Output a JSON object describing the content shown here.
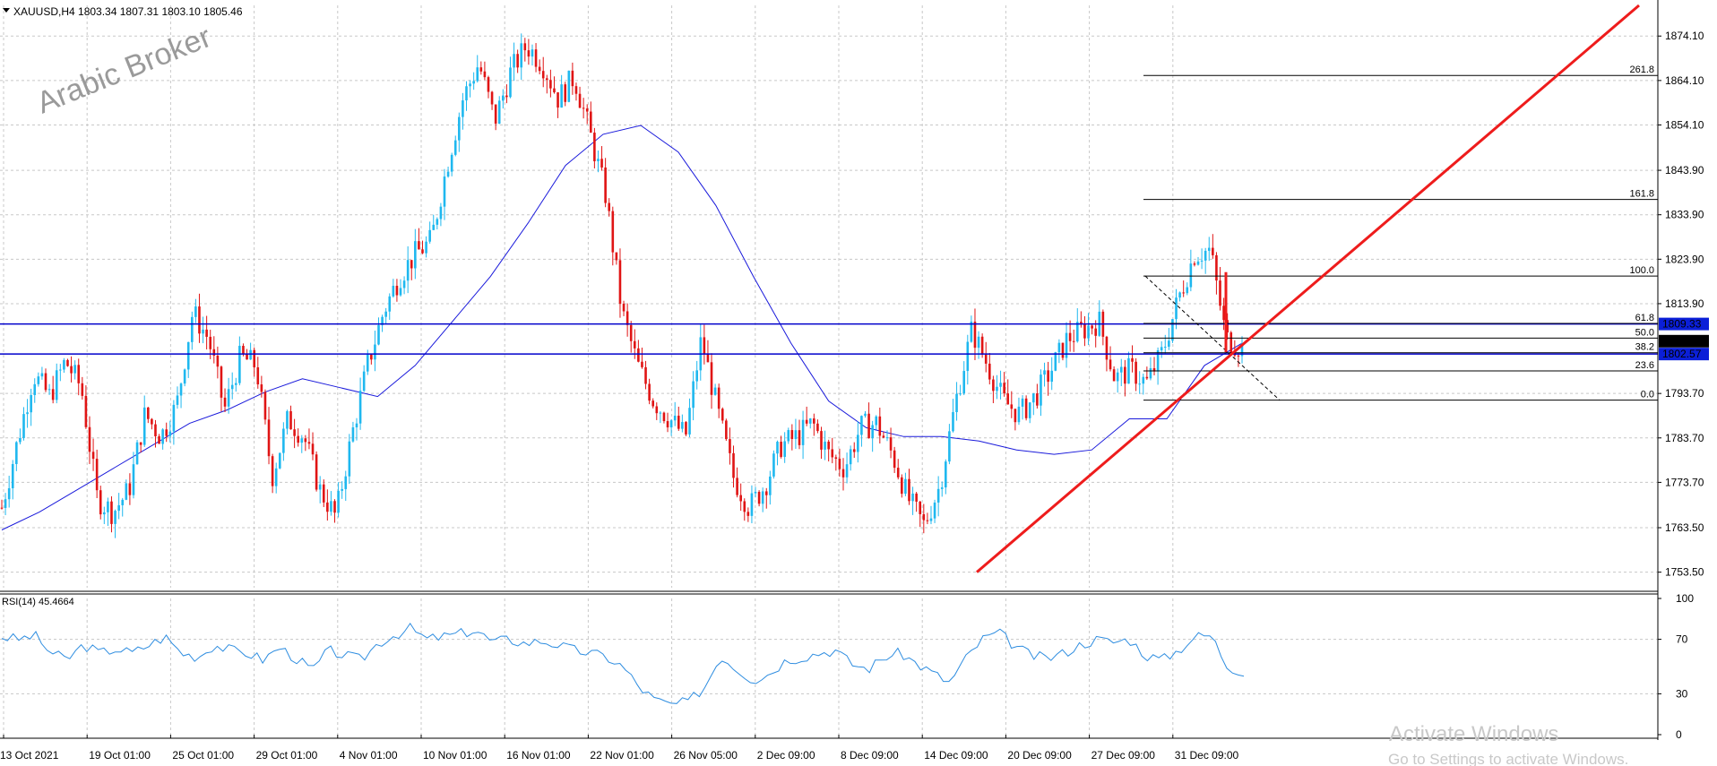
{
  "header": {
    "symbol_line": "XAUUSD,H4  1803.34 1807.31 1803.10 1805.46"
  },
  "watermark": "Arabic Broker",
  "activate_windows": {
    "title": "Activate Windows",
    "subtitle": "Go to Settings to activate Windows."
  },
  "colors": {
    "bull": "#1fb8ef",
    "bear": "#e01414",
    "ma": "#1a1adb",
    "hline": "#0000cc",
    "trend": "#ee1c1c",
    "fib": "#000000",
    "rsi": "#2e8de0",
    "grid": "#c8c8c8",
    "price_box": "#000000",
    "hline_box": "#0b1fd8"
  },
  "chart_data": [
    {
      "type": "candlestick",
      "symbol": "XAUUSD",
      "timeframe": "H4",
      "ohlc_current": {
        "open": 1803.34,
        "high": 1807.31,
        "low": 1803.1,
        "close": 1805.46
      },
      "ylim": [
        1750.0,
        1881.0
      ],
      "y_ticks": [
        1874.1,
        1864.1,
        1854.1,
        1843.9,
        1833.9,
        1823.9,
        1813.9,
        1793.7,
        1783.7,
        1773.7,
        1763.5,
        1753.5
      ],
      "x_labels": [
        "13 Oct 2021",
        "19 Oct 01:00",
        "25 Oct 01:00",
        "29 Oct 01:00",
        "4 Nov 01:00",
        "10 Nov 01:00",
        "16 Nov 01:00",
        "22 Nov 01:00",
        "26 Nov 05:00",
        "2 Dec 09:00",
        "8 Dec 09:00",
        "14 Dec 09:00",
        "20 Dec 09:00",
        "27 Dec 09:00",
        "31 Dec 09:00"
      ],
      "grid": true,
      "close_path": [
        1768,
        1783,
        1798,
        1793,
        1801,
        1795,
        1770,
        1767,
        1772,
        1789,
        1784,
        1791,
        1812,
        1806,
        1790,
        1802,
        1800,
        1775,
        1788,
        1784,
        1772,
        1766,
        1784,
        1800,
        1812,
        1820,
        1825,
        1828,
        1845,
        1860,
        1868,
        1855,
        1866,
        1872,
        1868,
        1860,
        1865,
        1852,
        1838,
        1812,
        1800,
        1792,
        1788,
        1784,
        1806,
        1790,
        1775,
        1768,
        1773,
        1782,
        1784,
        1787,
        1780,
        1777,
        1786,
        1787,
        1780,
        1770,
        1764,
        1773,
        1792,
        1808,
        1800,
        1792,
        1789,
        1793,
        1799,
        1806,
        1808,
        1810,
        1797,
        1799,
        1796,
        1803,
        1815,
        1825,
        1826,
        1806,
        1804
      ],
      "ma_path": [
        1763,
        1767,
        1772,
        1777,
        1782,
        1787,
        1790,
        1794,
        1797,
        1795,
        1793,
        1800,
        1810,
        1820,
        1832,
        1845,
        1852,
        1854,
        1848,
        1836,
        1820,
        1805,
        1792,
        1786,
        1784,
        1784,
        1783,
        1781,
        1780,
        1781,
        1788,
        1788,
        1800,
        1805
      ],
      "horizontal_lines": [
        {
          "price": 1809.33,
          "label": "1809.33"
        },
        {
          "price": 1802.57,
          "label": "1802.57"
        }
      ],
      "current_price_label": "1805.46",
      "fibonacci": {
        "from_price": 1792.2,
        "to_price": 1820.1,
        "levels": [
          {
            "ratio": 2.618,
            "label": "261.8"
          },
          {
            "ratio": 1.618,
            "label": "161.8"
          },
          {
            "ratio": 1.0,
            "label": "100.0"
          },
          {
            "ratio": 0.618,
            "label": "61.8"
          },
          {
            "ratio": 0.5,
            "label": "50.0"
          },
          {
            "ratio": 0.382,
            "label": "38.2"
          },
          {
            "ratio": 0.236,
            "label": "23.6"
          },
          {
            "ratio": 0.0,
            "label": "0.0"
          }
        ]
      },
      "trendline": {
        "from": {
          "x": "14 Dec 09:00",
          "price": 1753.5
        },
        "to": {
          "price": 1881.0
        }
      }
    },
    {
      "type": "line",
      "indicator_label": "RSI(14) 45.4664",
      "ylim": [
        0,
        100
      ],
      "y_ticks": [
        100,
        70,
        30,
        0
      ],
      "values": [
        72,
        70,
        73,
        60,
        55,
        66,
        60,
        63,
        60,
        66,
        72,
        60,
        57,
        66,
        62,
        60,
        55,
        64,
        56,
        47,
        62,
        58,
        55,
        67,
        73,
        78,
        70,
        72,
        74,
        77,
        68,
        70,
        67,
        69,
        66,
        62,
        60,
        57,
        50,
        35,
        25,
        22,
        24,
        35,
        58,
        48,
        40,
        45,
        55,
        57,
        60,
        62,
        52,
        48,
        57,
        60,
        52,
        45,
        38,
        56,
        70,
        75,
        65,
        58,
        56,
        60,
        66,
        70,
        68,
        70,
        58,
        55,
        62,
        72,
        73,
        50,
        46
      ]
    }
  ]
}
